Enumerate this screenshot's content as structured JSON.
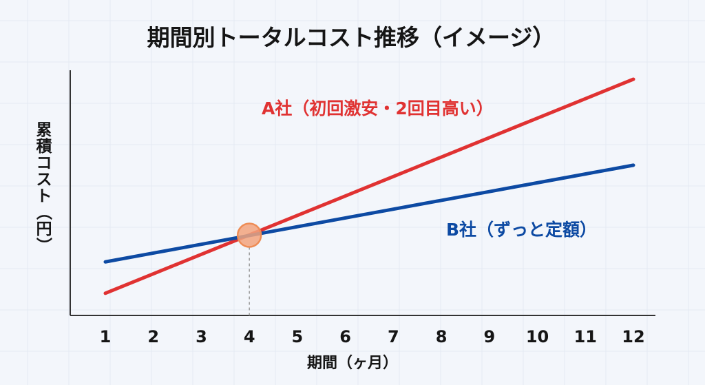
{
  "chart_data": {
    "type": "line",
    "title": "期間別トータルコスト推移（イメージ）",
    "xlabel": "期間（ヶ月）",
    "ylabel": "累積コスト（円）",
    "x": [
      1,
      2,
      3,
      4,
      5,
      6,
      7,
      8,
      9,
      10,
      11,
      12
    ],
    "xlim": [
      1,
      12
    ],
    "ylim": [
      0,
      100
    ],
    "y_ticks_shown": false,
    "grid": false,
    "series": [
      {
        "name": "A社（初回激安・2回目高い）",
        "color": "#e03232",
        "values": [
          5,
          14.3,
          23.6,
          32.9,
          42.2,
          51.5,
          60.8,
          70.1,
          79.4,
          88.7,
          98.0,
          107.3
        ]
      },
      {
        "name": "B社（ずっと定額）",
        "color": "#0d4aa3",
        "values": [
          20,
          24.2,
          28.4,
          32.6,
          36.8,
          41.0,
          45.2,
          49.4,
          53.6,
          57.8,
          62.0,
          66.2
        ]
      }
    ],
    "highlight": {
      "x": 4,
      "marker_color": "#f2a37c",
      "dashed_guide": true
    }
  }
}
